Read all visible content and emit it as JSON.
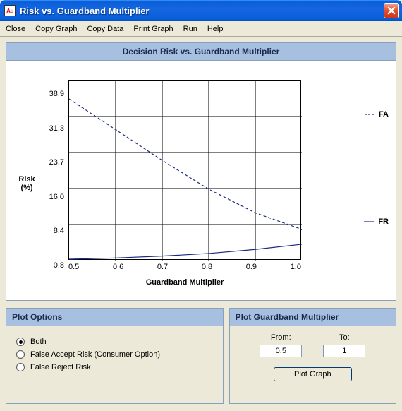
{
  "window": {
    "title": "Risk vs. Guardband Multiplier"
  },
  "menu": {
    "items": [
      "Close",
      "Copy Graph",
      "Copy Data",
      "Print Graph",
      "Run",
      "Help"
    ]
  },
  "chart": {
    "title": "Decision Risk vs. Guardband Multiplier",
    "type": "line",
    "ylabel": "Risk (%)",
    "xlabel": "Guardband Multiplier",
    "ylim": [
      0.8,
      38.9
    ],
    "yticks": [
      "38.9",
      "31.3",
      "23.7",
      "16.0",
      "8.4",
      "0.8"
    ],
    "xlim": [
      0.5,
      1.0
    ],
    "xticks": [
      "0.5",
      "0.6",
      "0.7",
      "0.8",
      "0.9",
      "1.0"
    ],
    "background_color": "#ffffff",
    "grid_color": "#000000",
    "series": [
      {
        "name": "FA",
        "color": "#1a2a80",
        "dash": "4 3",
        "width": 1.2,
        "points": [
          {
            "x": 0.5,
            "y": 35.0
          },
          {
            "x": 0.6,
            "y": 28.5
          },
          {
            "x": 0.7,
            "y": 22.0
          },
          {
            "x": 0.8,
            "y": 15.9
          },
          {
            "x": 0.9,
            "y": 10.9
          },
          {
            "x": 1.0,
            "y": 7.4
          }
        ]
      },
      {
        "name": "FR",
        "color": "#1a2a80",
        "dash": "none",
        "width": 1.2,
        "points": [
          {
            "x": 0.5,
            "y": 1.1
          },
          {
            "x": 0.6,
            "y": 1.35
          },
          {
            "x": 0.7,
            "y": 1.75
          },
          {
            "x": 0.8,
            "y": 2.3
          },
          {
            "x": 0.9,
            "y": 3.15
          },
          {
            "x": 1.0,
            "y": 4.25
          }
        ]
      }
    ],
    "legend": [
      "FA",
      "FR"
    ]
  },
  "plot_options": {
    "title": "Plot Options",
    "items": [
      {
        "label": "Both",
        "checked": true
      },
      {
        "label": "False Accept Risk (Consumer Option)",
        "checked": false
      },
      {
        "label": "False Reject Risk",
        "checked": false
      }
    ]
  },
  "plot_range": {
    "title": "Plot Guardband Multiplier",
    "from_label": "From:",
    "to_label": "To:",
    "from_value": "0.5",
    "to_value": "1",
    "button_label": "Plot Graph"
  }
}
